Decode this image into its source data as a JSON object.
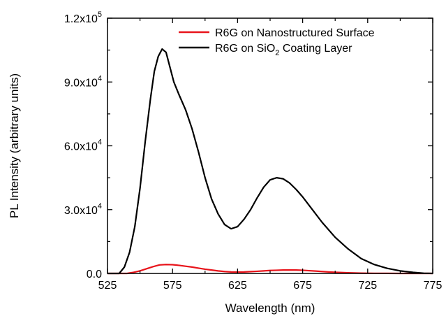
{
  "chart_data": {
    "type": "line",
    "xlabel": "Wavelength (nm)",
    "ylabel": "PL Intensity (arbitrary units)",
    "xlim": [
      525,
      775
    ],
    "ylim": [
      0,
      120000
    ],
    "x_ticks": [
      525,
      575,
      625,
      675,
      725,
      775
    ],
    "x_tick_labels": [
      "525",
      "575",
      "625",
      "675",
      "725",
      "775"
    ],
    "y_ticks": [
      0,
      30000,
      60000,
      90000,
      120000
    ],
    "y_tick_labels": [
      {
        "mantissa": "0.0",
        "exp": ""
      },
      {
        "mantissa": "3.0x10",
        "exp": "4"
      },
      {
        "mantissa": "6.0x10",
        "exp": "4"
      },
      {
        "mantissa": "9.0x10",
        "exp": "4"
      },
      {
        "mantissa": "1.2x10",
        "exp": "5"
      }
    ],
    "legend_position": "top-right",
    "grid": false,
    "series": [
      {
        "name": "R6G on Nanostructured Surface",
        "color": "#e8141b",
        "x": [
          525,
          540,
          545,
          550,
          555,
          560,
          565,
          570,
          575,
          580,
          585,
          590,
          595,
          600,
          605,
          610,
          615,
          620,
          625,
          630,
          635,
          640,
          645,
          650,
          655,
          660,
          665,
          670,
          675,
          680,
          685,
          690,
          695,
          700,
          705,
          710,
          715,
          720,
          725,
          730,
          740,
          750,
          760,
          775
        ],
        "y": [
          0,
          0,
          500,
          1200,
          2200,
          3200,
          4000,
          4200,
          4100,
          3800,
          3400,
          3000,
          2500,
          2000,
          1600,
          1200,
          900,
          700,
          650,
          700,
          850,
          1000,
          1200,
          1400,
          1500,
          1600,
          1650,
          1600,
          1500,
          1300,
          1100,
          900,
          700,
          550,
          400,
          300,
          200,
          150,
          100,
          60,
          30,
          10,
          0,
          0
        ]
      },
      {
        "name": "R6G on SiO2 Coating Layer",
        "name_parts": {
          "main": "R6G on SiO",
          "sub": "2",
          "rest": " Coating Layer"
        },
        "color": "#000000",
        "x": [
          525,
          534,
          538,
          542,
          546,
          550,
          554,
          558,
          561,
          564,
          567,
          570,
          573,
          576,
          580,
          585,
          590,
          595,
          600,
          605,
          610,
          615,
          620,
          625,
          630,
          635,
          640,
          645,
          650,
          655,
          660,
          665,
          670,
          675,
          680,
          690,
          700,
          710,
          720,
          730,
          740,
          750,
          760,
          768,
          775
        ],
        "y": [
          0,
          0,
          3000,
          10000,
          22000,
          40000,
          62000,
          82000,
          95000,
          102000,
          105500,
          104000,
          97000,
          90000,
          84000,
          77000,
          68000,
          57000,
          45000,
          35000,
          28000,
          23000,
          21000,
          22000,
          25500,
          30000,
          35500,
          40500,
          44000,
          45000,
          44500,
          42500,
          39500,
          36000,
          32000,
          24000,
          17000,
          11500,
          7000,
          4200,
          2400,
          1200,
          500,
          100,
          0
        ]
      }
    ]
  }
}
